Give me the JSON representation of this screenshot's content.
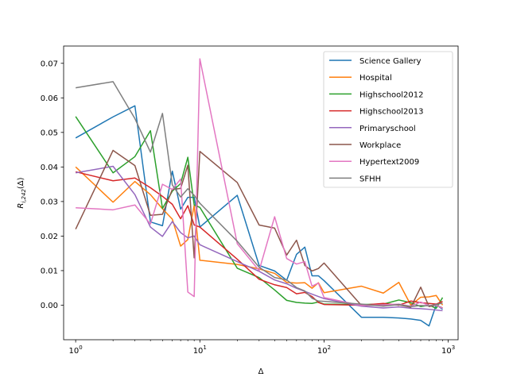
{
  "chart_data": {
    "type": "line",
    "xlabel": "Δ",
    "ylabel": "R_{i,242}(Δ)",
    "xscale": "log",
    "xlim": [
      0.8,
      1200
    ],
    "ylim": [
      -0.01,
      0.075
    ],
    "x_ticks": [
      {
        "value": 1,
        "base": "10",
        "exp": "0"
      },
      {
        "value": 10,
        "base": "10",
        "exp": "1"
      },
      {
        "value": 100,
        "base": "10",
        "exp": "2"
      },
      {
        "value": 1000,
        "base": "10",
        "exp": "3"
      }
    ],
    "y_ticks": [
      0.0,
      0.01,
      0.02,
      0.03,
      0.04,
      0.05,
      0.06,
      0.07
    ],
    "y_tick_labels": [
      "0.00",
      "0.01",
      "0.02",
      "0.03",
      "0.04",
      "0.05",
      "0.06",
      "0.07"
    ],
    "grid": false,
    "legend_position": "top-right",
    "series": [
      {
        "name": "Science Gallery",
        "color": "#1f77b4",
        "x": [
          1,
          2,
          3,
          4,
          5,
          6,
          7,
          8,
          9,
          10,
          20,
          30,
          40,
          50,
          60,
          70,
          80,
          90,
          100,
          200,
          300,
          400,
          500,
          600,
          700,
          800,
          900
        ],
        "y": [
          0.0484,
          0.0545,
          0.0577,
          0.0241,
          0.023,
          0.0388,
          0.0278,
          0.0312,
          0.0312,
          0.0226,
          0.0318,
          0.0115,
          0.0099,
          0.0072,
          0.0147,
          0.0168,
          0.0085,
          0.0085,
          0.0071,
          -0.0035,
          -0.0035,
          -0.0037,
          -0.004,
          -0.0044,
          -0.006,
          0.0001,
          -0.0012
        ]
      },
      {
        "name": "Hospital",
        "color": "#ff7f0e",
        "x": [
          1,
          2,
          3,
          4,
          5,
          6,
          7,
          8,
          9,
          10,
          20,
          30,
          40,
          50,
          60,
          70,
          80,
          90,
          100,
          200,
          300,
          400,
          500,
          600,
          700,
          800,
          900
        ],
        "y": [
          0.04,
          0.0298,
          0.0358,
          0.032,
          0.0279,
          0.0249,
          0.0171,
          0.019,
          0.0289,
          0.013,
          0.0118,
          0.0105,
          0.0092,
          0.0066,
          0.0064,
          0.0065,
          0.0049,
          0.0065,
          0.0036,
          0.0055,
          0.0035,
          0.0066,
          0.0,
          0.0023,
          0.0024,
          0.0028,
          0.0
        ]
      },
      {
        "name": "Highschool2012",
        "color": "#2ca02c",
        "x": [
          1,
          2,
          3,
          4,
          5,
          6,
          7,
          8,
          9,
          10,
          20,
          30,
          40,
          50,
          60,
          70,
          80,
          90,
          100,
          200,
          300,
          400,
          500,
          600,
          700,
          800,
          900
        ],
        "y": [
          0.0546,
          0.0383,
          0.043,
          0.0505,
          0.028,
          0.033,
          0.0352,
          0.0428,
          0.029,
          0.0283,
          0.0107,
          0.008,
          0.0044,
          0.0014,
          0.0008,
          0.0006,
          0.0005,
          0.0009,
          0.0003,
          0.0002,
          0.0003,
          0.0015,
          0.0007,
          -0.0004,
          0.0,
          -0.0009,
          0.0022
        ]
      },
      {
        "name": "Highschool2013",
        "color": "#d62728",
        "x": [
          1,
          2,
          3,
          4,
          5,
          6,
          7,
          8,
          9,
          10,
          20,
          30,
          40,
          50,
          60,
          70,
          80,
          90,
          100,
          200,
          300,
          400,
          500,
          600,
          700,
          800,
          900
        ],
        "y": [
          0.0386,
          0.036,
          0.0368,
          0.034,
          0.0315,
          0.0292,
          0.025,
          0.0288,
          0.0232,
          0.0226,
          0.0133,
          0.0075,
          0.0059,
          0.0051,
          0.0033,
          0.0037,
          0.0025,
          0.0008,
          0.0002,
          0.0,
          0.0005,
          0.0,
          0.0012,
          0.0007,
          0.0005,
          0.0003,
          0.0011
        ]
      },
      {
        "name": "Primaryschool",
        "color": "#9467bd",
        "x": [
          1,
          2,
          3,
          4,
          5,
          6,
          7,
          8,
          9,
          10,
          20,
          30,
          40,
          50,
          60,
          70,
          80,
          90,
          100,
          200,
          300,
          400,
          500,
          600,
          700,
          800,
          900
        ],
        "y": [
          0.0383,
          0.0402,
          0.032,
          0.0226,
          0.0199,
          0.0242,
          0.021,
          0.0195,
          0.02,
          0.0175,
          0.0126,
          0.0098,
          0.0073,
          0.0062,
          0.0049,
          0.004,
          0.0032,
          0.0025,
          0.0019,
          -0.0003,
          -0.0008,
          -0.0005,
          -0.0009,
          -0.001,
          -0.0012,
          -0.0014,
          -0.0016
        ]
      },
      {
        "name": "Workplace",
        "color": "#8c564b",
        "x": [
          1,
          2,
          3,
          4,
          5,
          6,
          7,
          8,
          9,
          10,
          20,
          30,
          40,
          50,
          60,
          70,
          80,
          90,
          100,
          200,
          300,
          400,
          500,
          600,
          700,
          800,
          900
        ],
        "y": [
          0.022,
          0.0448,
          0.0404,
          0.026,
          0.0263,
          0.0335,
          0.0338,
          0.0405,
          0.0137,
          0.0445,
          0.0355,
          0.0232,
          0.0223,
          0.0145,
          0.0188,
          0.0115,
          0.0099,
          0.0106,
          0.0122,
          -0.0001,
          0.0,
          0.0001,
          -0.0006,
          0.0052,
          -0.0004,
          0.0,
          -0.0008
        ]
      },
      {
        "name": "Hypertext2009",
        "color": "#e377c2",
        "x": [
          1,
          2,
          3,
          4,
          5,
          6,
          7,
          8,
          9,
          10,
          20,
          30,
          40,
          50,
          60,
          70,
          80,
          90,
          100,
          200,
          300,
          400,
          500,
          600,
          700,
          800,
          900
        ],
        "y": [
          0.0282,
          0.0276,
          0.029,
          0.0235,
          0.035,
          0.0335,
          0.0365,
          0.0038,
          0.0025,
          0.0713,
          0.0178,
          0.01,
          0.0256,
          0.0135,
          0.0119,
          0.0126,
          0.0055,
          0.0064,
          0.0022,
          -0.0001,
          0.0001,
          0.0003,
          -0.0003,
          0.0009,
          -0.0001,
          0.0,
          -0.0009
        ]
      },
      {
        "name": "SFHH",
        "color": "#7f7f7f",
        "x": [
          1,
          2,
          3,
          4,
          5,
          6,
          7,
          8,
          9,
          10,
          20,
          30,
          40,
          50,
          60,
          70,
          80,
          90,
          100,
          200,
          300,
          400,
          500,
          600,
          700,
          800,
          900
        ],
        "y": [
          0.0629,
          0.0647,
          0.054,
          0.0443,
          0.0555,
          0.0348,
          0.0313,
          0.0337,
          0.0318,
          0.0295,
          0.0185,
          0.011,
          0.008,
          0.0073,
          0.0051,
          0.0041,
          0.002,
          0.0012,
          0.0011,
          0.0003,
          -0.0003,
          0.0002,
          -0.0004,
          -0.0001,
          -0.0002,
          0.0002,
          0.0006
        ]
      }
    ]
  }
}
